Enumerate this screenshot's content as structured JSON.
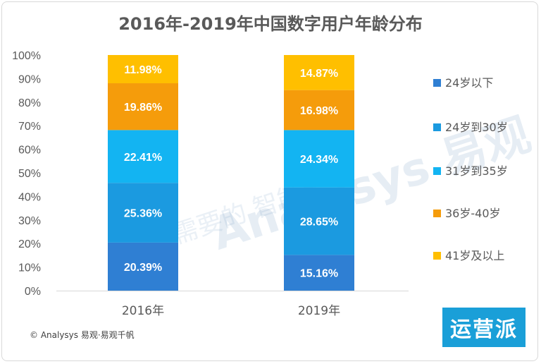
{
  "brand_badge": "运营派",
  "source": "© Analysys 易观·易观千帆",
  "colors": {
    "below24": "#2f7fd3",
    "age24to30": "#1b9ae0",
    "age31to35": "#13b4f2",
    "age36to40": "#f59c0b",
    "age41plus": "#ffbf00"
  },
  "chart_data": {
    "type": "bar",
    "stacked": true,
    "title": "2016年-2019年中国数字用户年龄分布",
    "categories": [
      "2016年",
      "2019年"
    ],
    "ylim": [
      0,
      100
    ],
    "yticks": [
      "0%",
      "10%",
      "20%",
      "30%",
      "40%",
      "50%",
      "60%",
      "70%",
      "80%",
      "90%",
      "100%"
    ],
    "legend_position": "right",
    "series": [
      {
        "name": "24岁以下",
        "values": [
          20.39,
          15.16
        ],
        "labels": [
          "20.39%",
          "15.16%"
        ]
      },
      {
        "name": "24岁到30岁",
        "values": [
          25.36,
          28.65
        ],
        "labels": [
          "25.36%",
          "28.65%"
        ]
      },
      {
        "name": "31岁到35岁",
        "values": [
          22.41,
          24.34
        ],
        "labels": [
          "22.41%",
          "24.34%"
        ]
      },
      {
        "name": "36岁-40岁",
        "values": [
          19.86,
          16.98
        ],
        "labels": [
          "19.86%",
          "16.98%"
        ]
      },
      {
        "name": "41岁及以上",
        "values": [
          11.98,
          14.87
        ],
        "labels": [
          "11.98%",
          "14.87%"
        ]
      }
    ]
  }
}
